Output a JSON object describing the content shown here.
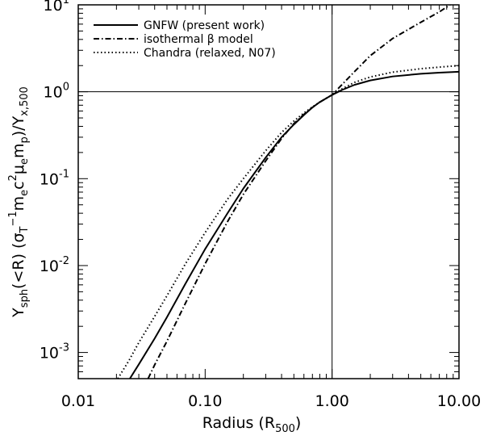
{
  "chart_data": {
    "type": "line",
    "x_scale": "log",
    "y_scale": "log",
    "xlim": [
      0.01,
      10.0
    ],
    "ylim": [
      0.0005,
      10
    ],
    "xticks": [
      {
        "value": 0.01,
        "label": "0.01"
      },
      {
        "value": 0.1,
        "label": "0.10"
      },
      {
        "value": 1.0,
        "label": "1.00"
      },
      {
        "value": 10.0,
        "label": "10.00"
      }
    ],
    "yticks": [
      {
        "value": 0.001,
        "base": "10",
        "exp": "-3"
      },
      {
        "value": 0.01,
        "base": "10",
        "exp": "-2"
      },
      {
        "value": 0.1,
        "base": "10",
        "exp": "-1"
      },
      {
        "value": 1,
        "base": "10",
        "exp": "0"
      },
      {
        "value": 10,
        "base": "10",
        "exp": "1"
      }
    ],
    "xlabel": {
      "main": "Radius  (R",
      "sub": "500",
      "close": ")"
    },
    "ylabel": {
      "part1": "Y",
      "sub1": "sph",
      "part2": "(<R)    (σ",
      "sub2": "T",
      "sup1": "−1",
      "part3": "m",
      "sub3": "e",
      "part4": "c",
      "sup2": "2",
      "part5": "μ",
      "sub5": "e",
      "part6": "m",
      "sub6": "p",
      "part7": ")/Y",
      "sub7": "x,500"
    },
    "reference_lines": {
      "x": 1.0,
      "y": 1.0
    },
    "legend_position": "top-left",
    "series": [
      {
        "name": "GNFW (present work)",
        "style": "solid",
        "points": [
          [
            0.0255,
            0.0005
          ],
          [
            0.03,
            0.00073
          ],
          [
            0.04,
            0.00145
          ],
          [
            0.05,
            0.00255
          ],
          [
            0.07,
            0.0062
          ],
          [
            0.1,
            0.0155
          ],
          [
            0.15,
            0.04
          ],
          [
            0.2,
            0.077
          ],
          [
            0.3,
            0.175
          ],
          [
            0.4,
            0.3
          ],
          [
            0.5,
            0.42
          ],
          [
            0.6,
            0.54
          ],
          [
            0.7,
            0.66
          ],
          [
            0.8,
            0.76
          ],
          [
            0.9,
            0.84
          ],
          [
            1.0,
            0.92
          ],
          [
            1.2,
            1.05
          ],
          [
            1.5,
            1.2
          ],
          [
            2.0,
            1.35
          ],
          [
            3.0,
            1.5
          ],
          [
            5.0,
            1.61
          ],
          [
            7.0,
            1.66
          ],
          [
            10.0,
            1.7
          ]
        ]
      },
      {
        "name": "isothermal  β  model",
        "style": "dashdot",
        "points": [
          [
            0.0355,
            0.0005
          ],
          [
            0.04,
            0.00072
          ],
          [
            0.05,
            0.00135
          ],
          [
            0.07,
            0.0037
          ],
          [
            0.1,
            0.0105
          ],
          [
            0.15,
            0.032
          ],
          [
            0.2,
            0.066
          ],
          [
            0.3,
            0.16
          ],
          [
            0.4,
            0.29
          ],
          [
            0.5,
            0.43
          ],
          [
            0.6,
            0.55
          ],
          [
            0.7,
            0.66
          ],
          [
            0.8,
            0.76
          ],
          [
            0.9,
            0.84
          ],
          [
            1.0,
            0.92
          ],
          [
            1.5,
            1.7
          ],
          [
            2.0,
            2.6
          ],
          [
            3.0,
            4.1
          ],
          [
            5.0,
            6.3
          ],
          [
            7.0,
            8.3
          ],
          [
            8.5,
            10.0
          ]
        ]
      },
      {
        "name": "Chandra (relaxed, N07)",
        "style": "dotted",
        "points": [
          [
            0.0205,
            0.0005
          ],
          [
            0.025,
            0.0008
          ],
          [
            0.03,
            0.0013
          ],
          [
            0.04,
            0.0026
          ],
          [
            0.05,
            0.0045
          ],
          [
            0.07,
            0.0105
          ],
          [
            0.1,
            0.024
          ],
          [
            0.15,
            0.058
          ],
          [
            0.2,
            0.1
          ],
          [
            0.3,
            0.21
          ],
          [
            0.4,
            0.34
          ],
          [
            0.5,
            0.46
          ],
          [
            0.6,
            0.57
          ],
          [
            0.7,
            0.67
          ],
          [
            0.8,
            0.76
          ],
          [
            0.9,
            0.84
          ],
          [
            1.0,
            0.92
          ],
          [
            1.2,
            1.08
          ],
          [
            1.5,
            1.28
          ],
          [
            2.0,
            1.48
          ],
          [
            3.0,
            1.68
          ],
          [
            5.0,
            1.84
          ],
          [
            7.0,
            1.92
          ],
          [
            10.0,
            2.0
          ]
        ]
      }
    ]
  }
}
